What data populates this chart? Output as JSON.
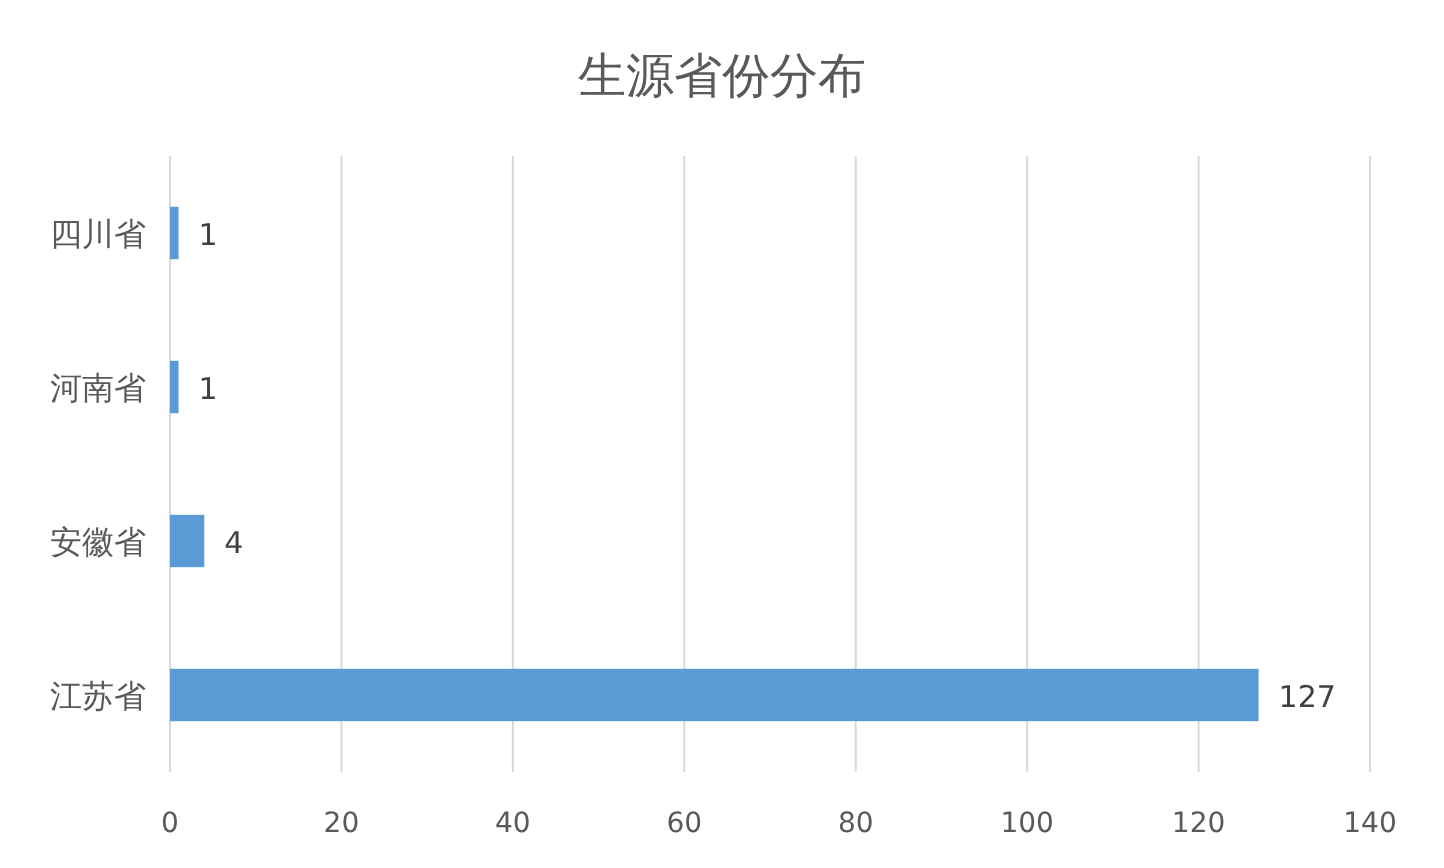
{
  "chart_data": {
    "type": "bar",
    "orientation": "horizontal",
    "title": "生源省份分布",
    "categories": [
      "四川省",
      "河南省",
      "安徽省",
      "江苏省"
    ],
    "values": [
      1,
      1,
      4,
      127
    ],
    "color": "#5b9bd5",
    "xlim": [
      0,
      140
    ],
    "xticks": [
      0,
      20,
      40,
      60,
      80,
      100,
      120,
      140
    ],
    "grid": "x",
    "data_labels": true
  }
}
